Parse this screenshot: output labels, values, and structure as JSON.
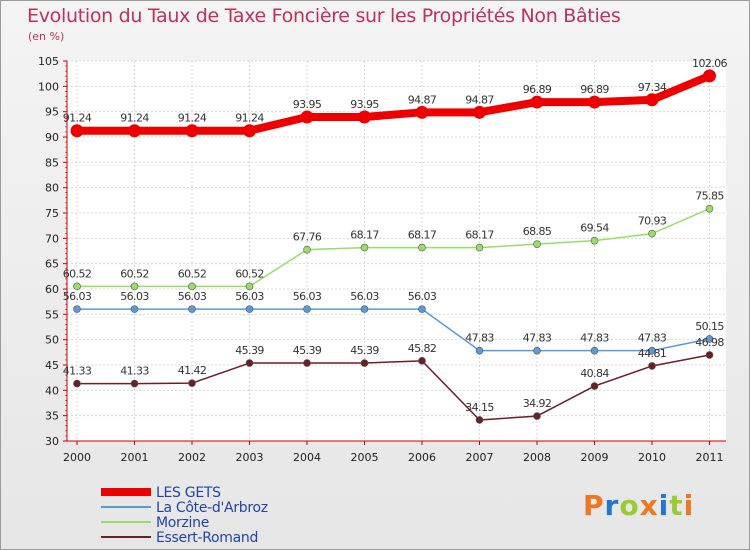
{
  "chart_data": {
    "type": "line",
    "title": "Evolution du Taux de Taxe Foncière sur les Propriétés Non Bâties",
    "subtitle": "(en %)",
    "x": [
      "2000",
      "2001",
      "2002",
      "2003",
      "2004",
      "2005",
      "2006",
      "2007",
      "2008",
      "2009",
      "2010",
      "2011"
    ],
    "ylim": [
      30,
      105
    ],
    "yticks": [
      30,
      35,
      40,
      45,
      50,
      55,
      60,
      65,
      70,
      75,
      80,
      85,
      90,
      95,
      100,
      105
    ],
    "grid": true,
    "legend_position": "bottom-left",
    "series": [
      {
        "name": "LES GETS",
        "color": "#ee0000",
        "values": [
          91.24,
          91.24,
          91.24,
          91.24,
          93.95,
          93.95,
          94.87,
          94.87,
          96.89,
          96.89,
          97.34,
          102.06
        ],
        "labels": [
          "91.24",
          "91.24",
          "91.24",
          "91.24",
          "93.95",
          "93.95",
          "94.87",
          "94.87",
          "96.89",
          "96.89",
          "97.34",
          "102.06"
        ]
      },
      {
        "name": "La Côte-d'Arbroz",
        "color": "#5b9bd5",
        "values": [
          56.03,
          56.03,
          56.03,
          56.03,
          56.03,
          56.03,
          56.03,
          47.83,
          47.83,
          47.83,
          47.83,
          50.15
        ],
        "labels": [
          "56.03",
          "56.03",
          "56.03",
          "56.03",
          "56.03",
          "56.03",
          "56.03",
          "47.83",
          "47.83",
          "47.83",
          "47.83",
          "50.15"
        ]
      },
      {
        "name": "Morzine",
        "color": "#99dd66",
        "values": [
          60.52,
          60.52,
          60.52,
          60.52,
          67.76,
          68.17,
          68.17,
          68.17,
          68.85,
          69.54,
          70.93,
          75.85
        ],
        "labels": [
          "60.52",
          "60.52",
          "60.52",
          "60.52",
          "67.76",
          "68.17",
          "68.17",
          "68.17",
          "68.85",
          "69.54",
          "70.93",
          "75.85"
        ]
      },
      {
        "name": "Essert-Romand",
        "color": "#6b1f26",
        "values": [
          41.33,
          41.33,
          41.42,
          45.39,
          45.39,
          45.39,
          45.82,
          34.15,
          34.92,
          40.84,
          44.81,
          46.98
        ],
        "labels": [
          "41.33",
          "41.33",
          "41.42",
          "45.39",
          "45.39",
          "45.39",
          "45.82",
          "34.15",
          "34.92",
          "40.84",
          "44.81",
          "46.98"
        ]
      }
    ]
  },
  "logo": {
    "text": "Proxiti",
    "colors": [
      "#ee7722",
      "#2277cc",
      "#99cc33",
      "#ee7722",
      "#2277cc",
      "#99cc33",
      "#ee7722"
    ]
  }
}
